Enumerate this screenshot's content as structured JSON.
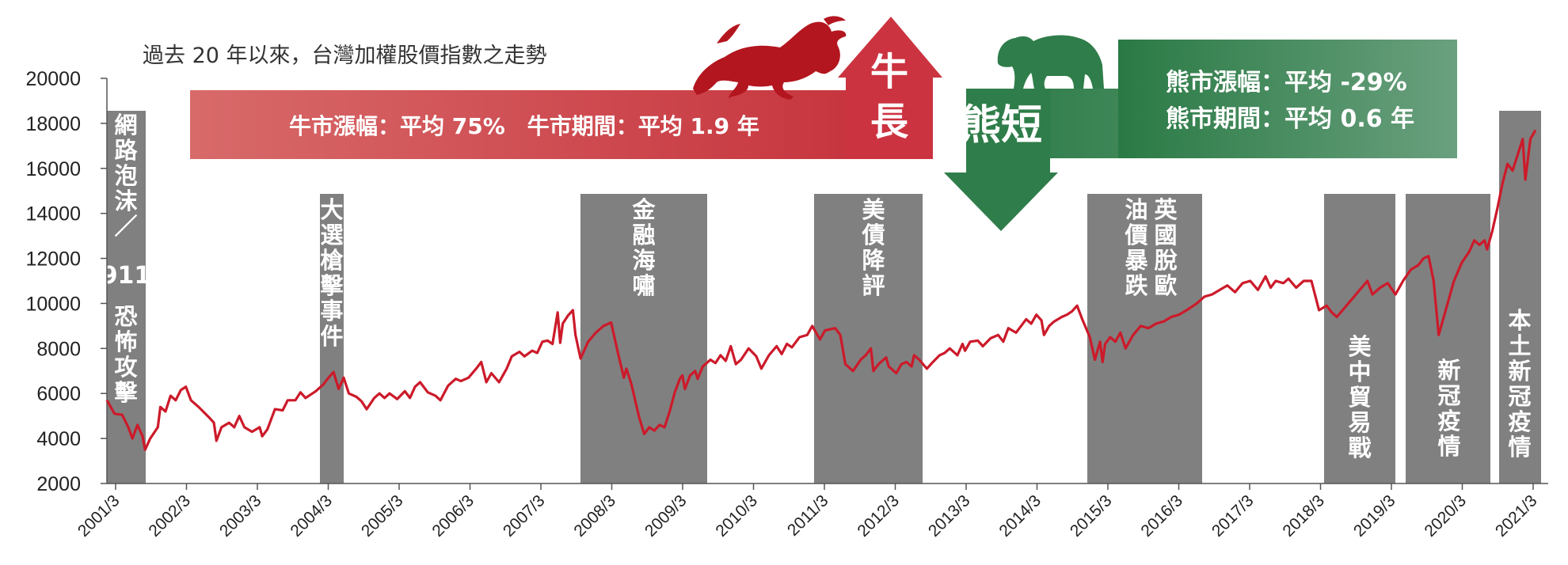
{
  "chart_data": {
    "type": "line",
    "title": "過去 20 年以來，台灣加權股價指數之走勢",
    "xlabel": "",
    "ylabel": "",
    "ylim": [
      2000,
      20000
    ],
    "yticks": [
      2000,
      4000,
      6000,
      8000,
      10000,
      12000,
      14000,
      16000,
      18000,
      20000
    ],
    "xticks": [
      "2001/3",
      "2002/3",
      "2003/3",
      "2004/3",
      "2005/3",
      "2006/3",
      "2007/3",
      "2008/3",
      "2009/3",
      "2010/3",
      "2011/3",
      "2012/3",
      "2013/3",
      "2014/3",
      "2015/3",
      "2016/3",
      "2017/3",
      "2018/3",
      "2019/3",
      "2020/3",
      "2021/3"
    ],
    "grid": false,
    "line_color": "#cc1a2a",
    "series": [
      {
        "name": "",
        "points": [
          [
            2001.0,
            5700
          ],
          [
            2001.15,
            5100
          ],
          [
            2001.3,
            5050
          ],
          [
            2001.42,
            4500
          ],
          [
            2001.5,
            4000
          ],
          [
            2001.6,
            4600
          ],
          [
            2001.7,
            4100
          ],
          [
            2001.75,
            3500
          ],
          [
            2001.85,
            4000
          ],
          [
            2002.0,
            4500
          ],
          [
            2002.05,
            5400
          ],
          [
            2002.15,
            5200
          ],
          [
            2002.25,
            5900
          ],
          [
            2002.35,
            5700
          ],
          [
            2002.45,
            6150
          ],
          [
            2002.55,
            6300
          ],
          [
            2002.65,
            5700
          ],
          [
            2002.8,
            5400
          ],
          [
            2003.0,
            4950
          ],
          [
            2003.1,
            4700
          ],
          [
            2003.15,
            3900
          ],
          [
            2003.25,
            4500
          ],
          [
            2003.4,
            4700
          ],
          [
            2003.5,
            4500
          ],
          [
            2003.6,
            5000
          ],
          [
            2003.7,
            4500
          ],
          [
            2003.85,
            4300
          ],
          [
            2004.0,
            4500
          ],
          [
            2004.05,
            4100
          ],
          [
            2004.15,
            4400
          ],
          [
            2004.3,
            5300
          ],
          [
            2004.45,
            5250
          ],
          [
            2004.55,
            5700
          ],
          [
            2004.7,
            5700
          ],
          [
            2004.8,
            6050
          ],
          [
            2004.9,
            5800
          ],
          [
            2005.1,
            6100
          ],
          [
            2005.25,
            6400
          ],
          [
            2005.35,
            6700
          ],
          [
            2005.45,
            6950
          ],
          [
            2005.55,
            6200
          ],
          [
            2005.65,
            6700
          ],
          [
            2005.75,
            6000
          ],
          [
            2005.9,
            5850
          ],
          [
            2006.0,
            5650
          ],
          [
            2006.1,
            5300
          ],
          [
            2006.25,
            5800
          ],
          [
            2006.35,
            6000
          ],
          [
            2006.45,
            5800
          ],
          [
            2006.55,
            6000
          ],
          [
            2006.7,
            5750
          ],
          [
            2006.85,
            6100
          ],
          [
            2006.95,
            5800
          ],
          [
            2007.05,
            6300
          ],
          [
            2007.15,
            6500
          ],
          [
            2007.3,
            6050
          ],
          [
            2007.45,
            5900
          ],
          [
            2007.55,
            5700
          ],
          [
            2007.7,
            6350
          ],
          [
            2007.85,
            6650
          ],
          [
            2007.95,
            6550
          ],
          [
            2008.1,
            6700
          ],
          [
            2008.25,
            7100
          ],
          [
            2008.35,
            7400
          ],
          [
            2008.45,
            6500
          ],
          [
            2008.55,
            6900
          ],
          [
            2008.7,
            6500
          ],
          [
            2008.85,
            7100
          ],
          [
            2008.95,
            7650
          ],
          [
            2009.1,
            7850
          ],
          [
            2009.2,
            7650
          ],
          [
            2009.35,
            7900
          ],
          [
            2009.45,
            7800
          ],
          [
            2009.55,
            8300
          ],
          [
            2009.65,
            8350
          ],
          [
            2009.75,
            8200
          ],
          [
            2009.85,
            9600
          ],
          [
            2009.9,
            8250
          ],
          [
            2009.95,
            9100
          ],
          [
            2010.05,
            9450
          ],
          [
            2010.15,
            9700
          ],
          [
            2010.2,
            8600
          ],
          [
            2010.3,
            7550
          ],
          [
            2010.45,
            8300
          ],
          [
            2010.6,
            8700
          ],
          [
            2010.75,
            9000
          ],
          [
            2010.9,
            9150
          ],
          [
            2011.05,
            7650
          ],
          [
            2011.15,
            6700
          ],
          [
            2011.2,
            7100
          ],
          [
            2011.3,
            6400
          ],
          [
            2011.45,
            4950
          ],
          [
            2011.55,
            4200
          ],
          [
            2011.65,
            4500
          ],
          [
            2011.75,
            4350
          ],
          [
            2011.85,
            4600
          ],
          [
            2011.95,
            4500
          ],
          [
            2012.05,
            5200
          ],
          [
            2012.15,
            6050
          ],
          [
            2012.25,
            6650
          ],
          [
            2012.3,
            6800
          ],
          [
            2012.35,
            6200
          ],
          [
            2012.45,
            6800
          ],
          [
            2012.55,
            7000
          ],
          [
            2012.6,
            6650
          ],
          [
            2012.7,
            7200
          ],
          [
            2012.85,
            7500
          ],
          [
            2012.95,
            7350
          ],
          [
            2013.05,
            7700
          ],
          [
            2013.15,
            7450
          ],
          [
            2013.25,
            8100
          ],
          [
            2013.35,
            7300
          ],
          [
            2013.45,
            7500
          ],
          [
            2013.6,
            8000
          ],
          [
            2013.75,
            7650
          ],
          [
            2013.85,
            7100
          ],
          [
            2014.0,
            7700
          ],
          [
            2014.15,
            8100
          ],
          [
            2014.25,
            7750
          ],
          [
            2014.35,
            8200
          ],
          [
            2014.45,
            8050
          ],
          [
            2014.6,
            8500
          ],
          [
            2014.75,
            8600
          ],
          [
            2014.85,
            9000
          ],
          [
            2015.0,
            8400
          ],
          [
            2015.1,
            8800
          ],
          [
            2015.3,
            8900
          ],
          [
            2015.4,
            8600
          ],
          [
            2015.5,
            7300
          ],
          [
            2015.65,
            7000
          ],
          [
            2015.8,
            7500
          ],
          [
            2015.9,
            7700
          ],
          [
            2016.0,
            8000
          ],
          [
            2016.05,
            7000
          ],
          [
            2016.15,
            7300
          ],
          [
            2016.3,
            7600
          ],
          [
            2016.35,
            7200
          ],
          [
            2016.5,
            6900
          ],
          [
            2016.6,
            7300
          ],
          [
            2016.7,
            7400
          ],
          [
            2016.8,
            7200
          ],
          [
            2016.85,
            7700
          ],
          [
            2016.95,
            7500
          ],
          [
            2017.1,
            7100
          ],
          [
            2017.2,
            7350
          ],
          [
            2017.35,
            7700
          ],
          [
            2017.45,
            7800
          ],
          [
            2017.55,
            8000
          ],
          [
            2017.7,
            7700
          ],
          [
            2017.8,
            8200
          ],
          [
            2017.85,
            7900
          ],
          [
            2017.95,
            8300
          ],
          [
            2018.1,
            8350
          ],
          [
            2018.2,
            8100
          ],
          [
            2018.35,
            8450
          ],
          [
            2018.5,
            8600
          ],
          [
            2018.6,
            8300
          ],
          [
            2018.7,
            8900
          ],
          [
            2018.85,
            8700
          ],
          [
            2018.95,
            9000
          ],
          [
            2019.05,
            9300
          ],
          [
            2019.15,
            9100
          ],
          [
            2019.25,
            9500
          ],
          [
            2019.35,
            9250
          ],
          [
            2019.4,
            8600
          ],
          [
            2019.5,
            9000
          ],
          [
            2019.6,
            9200
          ],
          [
            2019.75,
            9400
          ],
          [
            2019.85,
            9500
          ],
          [
            2019.95,
            9650
          ],
          [
            2020.05,
            9900
          ],
          [
            2020.15,
            9300
          ],
          [
            2020.3,
            8500
          ],
          [
            2020.4,
            7500
          ],
          [
            2020.5,
            8300
          ],
          [
            2020.55,
            7400
          ],
          [
            2020.6,
            8200
          ],
          [
            2020.7,
            8500
          ],
          [
            2020.8,
            8300
          ],
          [
            2020.9,
            8700
          ],
          [
            2021.0,
            8000
          ],
          [
            2021.15,
            8600
          ],
          [
            2021.3,
            9000
          ],
          [
            2021.45,
            8900
          ],
          [
            2021.6,
            9100
          ],
          [
            2021.75,
            9200
          ],
          [
            2021.9,
            9400
          ],
          [
            2022.05,
            9500
          ],
          [
            2022.2,
            9700
          ],
          [
            2022.4,
            10000
          ],
          [
            2022.55,
            10300
          ],
          [
            2022.7,
            10400
          ],
          [
            2022.85,
            10600
          ],
          [
            2023.0,
            10800
          ],
          [
            2023.15,
            10500
          ],
          [
            2023.3,
            10900
          ],
          [
            2023.45,
            11000
          ],
          [
            2023.6,
            10600
          ],
          [
            2023.75,
            11200
          ],
          [
            2023.85,
            10700
          ],
          [
            2023.95,
            11000
          ],
          [
            2024.1,
            10900
          ],
          [
            2024.2,
            11100
          ],
          [
            2024.35,
            10700
          ],
          [
            2024.5,
            11000
          ],
          [
            2024.65,
            11000
          ],
          [
            2024.8,
            9700
          ],
          [
            2024.95,
            9900
          ],
          [
            2025.05,
            9600
          ],
          [
            2025.15,
            9400
          ],
          [
            2025.3,
            9800
          ],
          [
            2025.45,
            10200
          ],
          [
            2025.6,
            10600
          ],
          [
            2025.75,
            11000
          ],
          [
            2025.85,
            10400
          ],
          [
            2026.0,
            10700
          ],
          [
            2026.15,
            10900
          ],
          [
            2026.3,
            10400
          ],
          [
            2026.45,
            11000
          ],
          [
            2026.6,
            11500
          ],
          [
            2026.75,
            11700
          ],
          [
            2026.85,
            12000
          ],
          [
            2026.95,
            12100
          ],
          [
            2027.05,
            11000
          ],
          [
            2027.15,
            8600
          ],
          [
            2027.3,
            9800
          ],
          [
            2027.45,
            11000
          ],
          [
            2027.6,
            11800
          ],
          [
            2027.75,
            12300
          ],
          [
            2027.85,
            12800
          ],
          [
            2027.95,
            12600
          ],
          [
            2028.05,
            12800
          ],
          [
            2028.1,
            12400
          ],
          [
            2028.2,
            13200
          ],
          [
            2028.3,
            14200
          ],
          [
            2028.4,
            15300
          ],
          [
            2028.5,
            16200
          ],
          [
            2028.6,
            15900
          ],
          [
            2028.7,
            16600
          ],
          [
            2028.8,
            17300
          ],
          [
            2028.85,
            15500
          ],
          [
            2028.95,
            17300
          ],
          [
            2029.05,
            17700
          ]
        ]
      }
    ],
    "events": [
      {
        "label": "網路泡沫／911恐怖攻擊",
        "start": 2001.0,
        "end": 2001.55
      },
      {
        "label": "大選槍擊事件",
        "start": 2003.0,
        "end": 2003.33
      },
      {
        "label": "金融海嘯",
        "start": 2007.55,
        "end": 2009.3
      },
      {
        "label": "美債降評",
        "start": 2010.95,
        "end": 2012.5
      },
      {
        "label": "英國脫歐／油價暴跌",
        "start": 2014.85,
        "end": 2016.45
      },
      {
        "label": "美中貿易戰",
        "start": 2018.0,
        "end": 2019.0
      },
      {
        "label": "新冠疫情",
        "start": 2019.25,
        "end": 2020.45
      },
      {
        "label": "本土新冠疫情",
        "start": 2020.55,
        "end": 2021.15
      }
    ]
  },
  "bull": {
    "big_text": [
      "牛",
      "長"
    ],
    "stats": "牛市漲幅：平均 75%　牛市期間：平均 1.9 年",
    "color": "#cc3340"
  },
  "bear": {
    "big_text": "熊短",
    "stats_line1": "熊市漲幅：平均 -29%",
    "stats_line2": "熊市期間：平均 0.6 年",
    "color": "#2f7d4a"
  }
}
